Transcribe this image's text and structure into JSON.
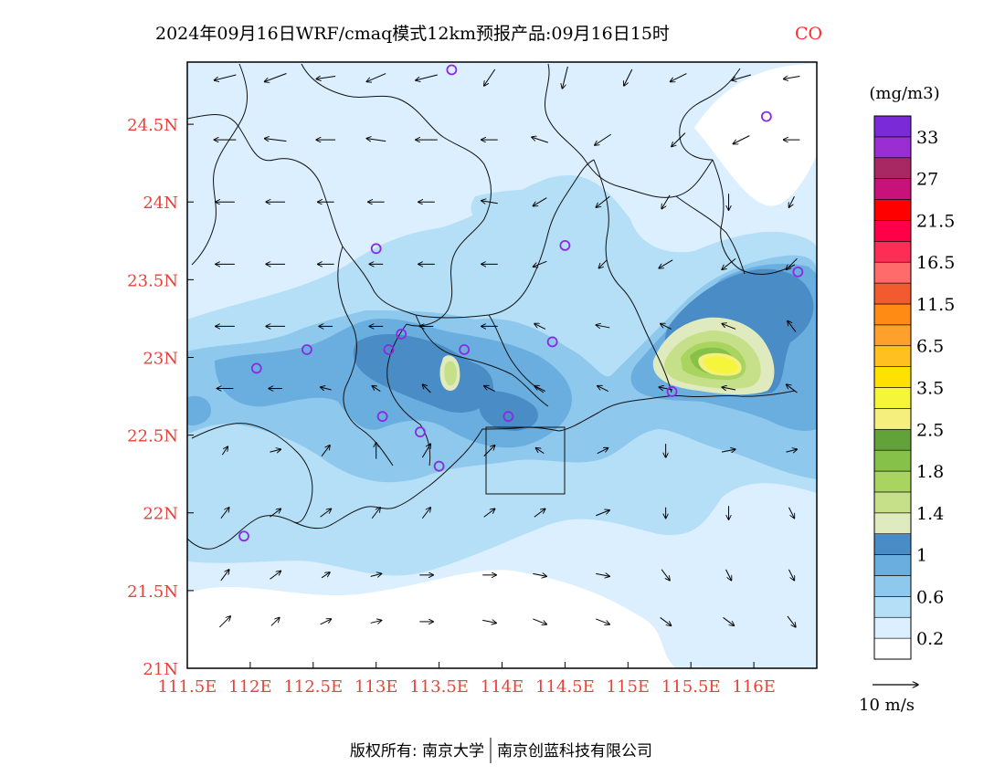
{
  "title": {
    "main": "2024年09月16日WRF/cmaq模式12km预报产品:09月16日15时",
    "species": "CO"
  },
  "map": {
    "lon_range": [
      111.5,
      116.5
    ],
    "lat_range": [
      21.0,
      24.9
    ],
    "lon_ticks": [
      {
        "value": 111.5,
        "label": "111.5E"
      },
      {
        "value": 112.0,
        "label": "112E"
      },
      {
        "value": 112.5,
        "label": "112.5E"
      },
      {
        "value": 113.0,
        "label": "113E"
      },
      {
        "value": 113.5,
        "label": "113.5E"
      },
      {
        "value": 114.0,
        "label": "114E"
      },
      {
        "value": 114.5,
        "label": "114.5E"
      },
      {
        "value": 115.0,
        "label": "115E"
      },
      {
        "value": 115.5,
        "label": "115.5E"
      },
      {
        "value": 116.0,
        "label": "116E"
      }
    ],
    "lat_ticks": [
      {
        "value": 21.0,
        "label": "21N"
      },
      {
        "value": 21.5,
        "label": "21.5N"
      },
      {
        "value": 22.0,
        "label": "22N"
      },
      {
        "value": 22.5,
        "label": "22.5N"
      },
      {
        "value": 23.0,
        "label": "23N"
      },
      {
        "value": 23.5,
        "label": "23.5N"
      },
      {
        "value": 24.0,
        "label": "24N"
      },
      {
        "value": 24.5,
        "label": "24.5N"
      }
    ],
    "stations": [
      [
        113.6,
        24.85
      ],
      [
        116.1,
        24.55
      ],
      [
        113.0,
        23.7
      ],
      [
        114.5,
        23.72
      ],
      [
        116.35,
        23.55
      ],
      [
        112.45,
        23.05
      ],
      [
        113.2,
        23.15
      ],
      [
        113.1,
        23.05
      ],
      [
        113.7,
        23.05
      ],
      [
        114.4,
        23.1
      ],
      [
        112.05,
        22.93
      ],
      [
        113.05,
        22.62
      ],
      [
        113.35,
        22.52
      ],
      [
        114.05,
        22.62
      ],
      [
        113.5,
        22.3
      ],
      [
        115.35,
        22.78
      ],
      [
        111.95,
        21.85
      ]
    ],
    "wind_vectors": [
      [
        111.8,
        24.8,
        -0.8,
        -0.2
      ],
      [
        112.2,
        24.8,
        -0.8,
        -0.3
      ],
      [
        112.6,
        24.8,
        -0.7,
        -0.1
      ],
      [
        113.0,
        24.8,
        -0.7,
        -0.3
      ],
      [
        113.4,
        24.8,
        -0.8,
        -0.2
      ],
      [
        113.9,
        24.8,
        -0.4,
        -0.6
      ],
      [
        114.5,
        24.8,
        -0.2,
        -0.8
      ],
      [
        115.0,
        24.8,
        -0.3,
        -0.6
      ],
      [
        115.4,
        24.8,
        -0.6,
        -0.3
      ],
      [
        115.9,
        24.8,
        -0.7,
        -0.2
      ],
      [
        116.3,
        24.8,
        -0.6,
        -0.1
      ],
      [
        111.8,
        24.4,
        -0.8,
        0.0
      ],
      [
        112.2,
        24.4,
        -0.8,
        0.1
      ],
      [
        112.6,
        24.4,
        -0.7,
        0.0
      ],
      [
        113.0,
        24.4,
        -0.7,
        0.1
      ],
      [
        113.4,
        24.4,
        -0.8,
        0.0
      ],
      [
        113.9,
        24.4,
        -0.6,
        0.0
      ],
      [
        114.3,
        24.4,
        -0.6,
        0.2
      ],
      [
        114.8,
        24.4,
        -0.6,
        -0.4
      ],
      [
        115.4,
        24.4,
        -0.5,
        -0.5
      ],
      [
        115.9,
        24.4,
        -0.6,
        -0.3
      ],
      [
        116.3,
        24.4,
        -0.6,
        0.0
      ],
      [
        111.8,
        24.0,
        -0.7,
        0.0
      ],
      [
        112.2,
        24.0,
        -0.7,
        0.0
      ],
      [
        112.6,
        24.0,
        -0.6,
        0.0
      ],
      [
        113.0,
        24.0,
        -0.6,
        0.0
      ],
      [
        113.4,
        24.0,
        -0.6,
        0.0
      ],
      [
        113.9,
        24.0,
        -0.6,
        0.1
      ],
      [
        114.3,
        24.0,
        -0.5,
        -0.3
      ],
      [
        114.8,
        24.0,
        -0.5,
        -0.4
      ],
      [
        115.3,
        24.0,
        -0.3,
        -0.5
      ],
      [
        115.8,
        24.0,
        0.0,
        -0.6
      ],
      [
        116.3,
        24.0,
        -0.2,
        -0.4
      ],
      [
        111.8,
        23.6,
        -0.7,
        0.0
      ],
      [
        112.2,
        23.6,
        -0.7,
        0.0
      ],
      [
        112.6,
        23.6,
        -0.6,
        0.0
      ],
      [
        113.0,
        23.6,
        -0.5,
        0.0
      ],
      [
        113.4,
        23.6,
        -0.6,
        0.0
      ],
      [
        113.9,
        23.6,
        -0.6,
        0.0
      ],
      [
        114.3,
        23.6,
        -0.5,
        -0.2
      ],
      [
        114.8,
        23.6,
        -0.3,
        -0.3
      ],
      [
        115.3,
        23.6,
        -0.5,
        -0.3
      ],
      [
        115.8,
        23.6,
        -0.5,
        -0.4
      ],
      [
        116.3,
        23.6,
        -0.4,
        -0.4
      ],
      [
        111.8,
        23.2,
        -0.7,
        0.0
      ],
      [
        112.2,
        23.2,
        -0.7,
        0.0
      ],
      [
        112.6,
        23.2,
        -0.5,
        0.0
      ],
      [
        113.0,
        23.2,
        -0.5,
        0.0
      ],
      [
        113.4,
        23.2,
        -0.5,
        0.0
      ],
      [
        113.9,
        23.2,
        -0.6,
        0.0
      ],
      [
        114.3,
        23.2,
        -0.4,
        0.2
      ],
      [
        114.8,
        23.2,
        -0.5,
        0.1
      ],
      [
        115.3,
        23.2,
        -0.4,
        0.2
      ],
      [
        115.8,
        23.2,
        -0.5,
        0.2
      ],
      [
        116.3,
        23.2,
        -0.3,
        0.4
      ],
      [
        111.8,
        22.8,
        -0.6,
        0.0
      ],
      [
        112.2,
        22.8,
        -0.5,
        0.0
      ],
      [
        112.6,
        22.8,
        -0.4,
        0.1
      ],
      [
        113.0,
        22.8,
        -0.3,
        0.2
      ],
      [
        113.4,
        22.8,
        -0.3,
        0.3
      ],
      [
        113.9,
        22.8,
        -0.4,
        0.2
      ],
      [
        114.3,
        22.8,
        -0.4,
        0.2
      ],
      [
        114.8,
        22.8,
        -0.4,
        0.2
      ],
      [
        115.3,
        22.8,
        -0.5,
        0.1
      ],
      [
        115.8,
        22.8,
        -0.5,
        0.1
      ],
      [
        116.3,
        22.8,
        -0.4,
        0.3
      ],
      [
        111.8,
        22.4,
        0.2,
        0.3
      ],
      [
        112.2,
        22.4,
        0.4,
        0.1
      ],
      [
        112.6,
        22.4,
        0.3,
        0.4
      ],
      [
        113.0,
        22.4,
        0.0,
        0.6
      ],
      [
        113.4,
        22.4,
        0.3,
        0.5
      ],
      [
        113.9,
        22.4,
        0.4,
        0.4
      ],
      [
        114.3,
        22.4,
        -0.3,
        0.2
      ],
      [
        114.8,
        22.4,
        0.4,
        0.2
      ],
      [
        115.3,
        22.4,
        0.0,
        -0.5
      ],
      [
        115.8,
        22.4,
        0.5,
        0.1
      ],
      [
        116.3,
        22.4,
        0.4,
        0.1
      ],
      [
        111.8,
        22.0,
        0.3,
        0.4
      ],
      [
        112.2,
        22.0,
        0.4,
        0.3
      ],
      [
        112.6,
        22.0,
        0.4,
        0.3
      ],
      [
        113.0,
        22.0,
        0.3,
        0.4
      ],
      [
        113.4,
        22.0,
        0.3,
        0.4
      ],
      [
        113.9,
        22.0,
        0.4,
        0.3
      ],
      [
        114.3,
        22.0,
        0.4,
        0.3
      ],
      [
        114.8,
        22.0,
        0.5,
        0.2
      ],
      [
        115.3,
        22.0,
        0.0,
        -0.4
      ],
      [
        115.8,
        22.0,
        0.0,
        -0.5
      ],
      [
        116.3,
        22.0,
        0.2,
        -0.4
      ],
      [
        111.8,
        21.6,
        0.3,
        0.4
      ],
      [
        112.2,
        21.6,
        0.4,
        0.3
      ],
      [
        112.6,
        21.6,
        0.3,
        0.2
      ],
      [
        113.0,
        21.6,
        0.4,
        0.1
      ],
      [
        113.4,
        21.6,
        0.5,
        0.0
      ],
      [
        113.9,
        21.6,
        0.5,
        0.0
      ],
      [
        114.3,
        21.6,
        0.5,
        -0.1
      ],
      [
        114.8,
        21.6,
        0.5,
        -0.1
      ],
      [
        115.3,
        21.6,
        0.3,
        -0.4
      ],
      [
        115.8,
        21.6,
        0.2,
        -0.4
      ],
      [
        116.3,
        21.6,
        0.2,
        -0.4
      ],
      [
        111.8,
        21.3,
        0.4,
        0.4
      ],
      [
        112.2,
        21.3,
        0.3,
        0.3
      ],
      [
        112.6,
        21.3,
        0.4,
        0.2
      ],
      [
        113.0,
        21.3,
        0.4,
        0.1
      ],
      [
        113.4,
        21.3,
        0.5,
        0.0
      ],
      [
        113.9,
        21.3,
        0.5,
        -0.1
      ],
      [
        114.3,
        21.3,
        0.5,
        -0.2
      ],
      [
        114.8,
        21.3,
        0.5,
        -0.2
      ],
      [
        115.3,
        21.3,
        0.4,
        -0.3
      ],
      [
        115.8,
        21.3,
        0.4,
        -0.3
      ],
      [
        116.3,
        21.3,
        0.3,
        -0.4
      ]
    ]
  },
  "colorbar": {
    "unit": "(mg/m3)",
    "colors": [
      "#ffffff",
      "#dcefff",
      "#b4dff7",
      "#8ec8ec",
      "#6aaee0",
      "#4a8cc6",
      "#dfeabf",
      "#c6e08a",
      "#a9d460",
      "#86c24a",
      "#62a238",
      "#f5ef7d",
      "#f5f53c",
      "#ffe100",
      "#ffc020",
      "#ffa02c",
      "#ff8a14",
      "#f25a30",
      "#ff6b6b",
      "#ff2c55",
      "#ff0048",
      "#ff0000",
      "#c8127a",
      "#a82864",
      "#9a2ed2",
      "#7a2ad6"
    ],
    "labels": [
      {
        "text": "0.2",
        "boundary": 1
      },
      {
        "text": "0.6",
        "boundary": 3
      },
      {
        "text": "1",
        "boundary": 5
      },
      {
        "text": "1.4",
        "boundary": 7
      },
      {
        "text": "1.8",
        "boundary": 9
      },
      {
        "text": "2.5",
        "boundary": 11
      },
      {
        "text": "3.5",
        "boundary": 13
      },
      {
        "text": "6.5",
        "boundary": 15
      },
      {
        "text": "11.5",
        "boundary": 17
      },
      {
        "text": "16.5",
        "boundary": 19
      },
      {
        "text": "21.5",
        "boundary": 21
      },
      {
        "text": "27",
        "boundary": 23
      },
      {
        "text": "33",
        "boundary": 25
      }
    ]
  },
  "wind_reference": {
    "label": "10 m/s"
  },
  "credit": {
    "left": "版权所有: 南京大学",
    "right": "南京创蓝科技有限公司"
  },
  "colors": {
    "frame": "#000000",
    "tick_label": "#e8403a",
    "station": "#8a2be2"
  }
}
